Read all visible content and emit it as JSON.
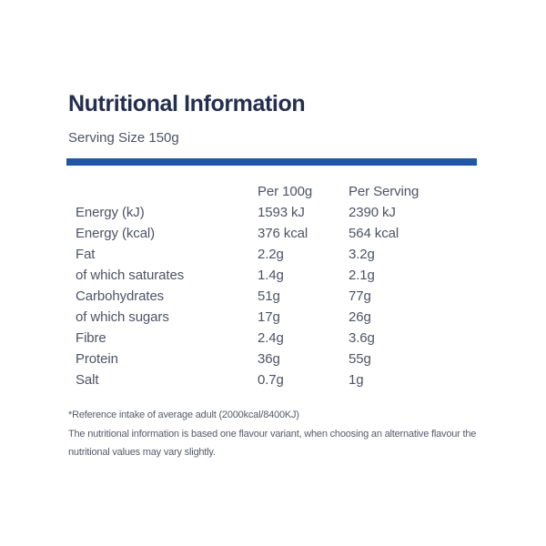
{
  "page": {
    "title": "Nutritional Information",
    "serving_size": "Serving Size 150g"
  },
  "colors": {
    "accent_bar": "#2056A5",
    "title_text": "#242E4E",
    "body_text": "#4E5365",
    "footnote_text": "#565B69"
  },
  "table": {
    "col_per_100g": "Per 100g",
    "col_per_serving": "Per Serving",
    "rows": [
      {
        "label": "Energy (kJ)",
        "per_100g": "1593 kJ",
        "per_serving": "2390 kJ"
      },
      {
        "label": "Energy (kcal)",
        "per_100g": "376 kcal",
        "per_serving": "564 kcal"
      },
      {
        "label": "Fat",
        "per_100g": "2.2g",
        "per_serving": "3.2g"
      },
      {
        "label": "of which saturates",
        "per_100g": "1.4g",
        "per_serving": "2.1g"
      },
      {
        "label": "Carbohydrates",
        "per_100g": "51g",
        "per_serving": "77g"
      },
      {
        "label": "of which sugars",
        "per_100g": "17g",
        "per_serving": "26g"
      },
      {
        "label": "Fibre",
        "per_100g": "2.4g",
        "per_serving": "3.6g"
      },
      {
        "label": "Protein",
        "per_100g": "36g",
        "per_serving": "55g"
      },
      {
        "label": "Salt",
        "per_100g": "0.7g",
        "per_serving": "1g"
      }
    ]
  },
  "footnote": {
    "reference": "*Reference intake of average adult (2000kcal/8400KJ)",
    "disclaimer": "The nutritional information is based one flavour variant, when choosing an alternative flavour the nutritional values may vary slightly."
  }
}
